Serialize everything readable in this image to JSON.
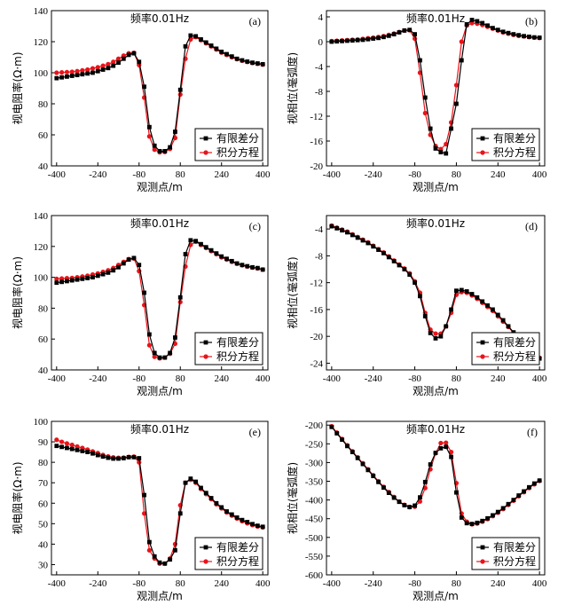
{
  "figure": {
    "legend": {
      "series_fd": "有限差分",
      "series_ie": "积分方程"
    },
    "colors": {
      "series_fd": "#000000",
      "series_ie": "#e8141a"
    }
  },
  "chart_data": [
    {
      "id": "a",
      "type": "line",
      "label": "(a)",
      "title": "频率0.01Hz",
      "xlabel": "观测点/m",
      "ylabel": "视电阻率(Ω·m)",
      "xlim": [
        -420,
        420
      ],
      "ylim": [
        40,
        140
      ],
      "xticks": [
        -400,
        -240,
        -80,
        80,
        240,
        400
      ],
      "xtick_labels": [
        "-400",
        "-240",
        "-80",
        "80",
        "240",
        "400"
      ],
      "yticks": [
        40,
        60,
        80,
        100,
        120,
        140
      ],
      "ytick_labels": [
        "40",
        "60",
        "80",
        "100",
        "120",
        "140"
      ],
      "x": [
        -400,
        -380,
        -360,
        -340,
        -320,
        -300,
        -280,
        -260,
        -240,
        -220,
        -200,
        -180,
        -160,
        -140,
        -120,
        -100,
        -80,
        -60,
        -40,
        -20,
        0,
        20,
        40,
        60,
        80,
        100,
        120,
        140,
        160,
        180,
        200,
        220,
        240,
        260,
        280,
        300,
        320,
        340,
        360,
        380,
        400
      ],
      "series": [
        {
          "name": "有限差分",
          "values": [
            96.5,
            97,
            97.5,
            98,
            98.5,
            99,
            99.5,
            100,
            101,
            102,
            103,
            104.5,
            106.5,
            109,
            111.5,
            112.5,
            107,
            91,
            65,
            53,
            49.5,
            49.5,
            52,
            62,
            89,
            117,
            124,
            123.5,
            121.5,
            119.5,
            117.5,
            115.5,
            113.5,
            112,
            110.5,
            109,
            108,
            107.2,
            106.5,
            106,
            105.5
          ]
        },
        {
          "name": "积分方程",
          "values": [
            100,
            100.2,
            100.4,
            100.6,
            101,
            101.5,
            102,
            102.8,
            103.5,
            104.5,
            105.5,
            107,
            109,
            111,
            112.5,
            112.8,
            105,
            84,
            59,
            50.5,
            48.8,
            49,
            51,
            58,
            86,
            109,
            121.5,
            123,
            121,
            119,
            117,
            115,
            113,
            111.5,
            110,
            108.8,
            107.8,
            107,
            106.3,
            105.8,
            105.3
          ]
        }
      ]
    },
    {
      "id": "b",
      "type": "line",
      "label": "(b)",
      "title": "频率0.01Hz",
      "xlabel": "观测点/m",
      "ylabel": "视相位(毫弧度)",
      "xlim": [
        -420,
        420
      ],
      "ylim": [
        -20,
        5
      ],
      "xticks": [
        -400,
        -240,
        -80,
        80,
        240,
        400
      ],
      "xtick_labels": [
        "-400",
        "-240",
        "-80",
        "80",
        "240",
        "400"
      ],
      "yticks": [
        -20,
        -16,
        -12,
        -8,
        -4,
        0,
        4
      ],
      "ytick_labels": [
        "-20",
        "-16",
        "-12",
        "-8",
        "-4",
        "0",
        "4"
      ],
      "x": [
        -400,
        -380,
        -360,
        -340,
        -320,
        -300,
        -280,
        -260,
        -240,
        -220,
        -200,
        -180,
        -160,
        -140,
        -120,
        -100,
        -80,
        -60,
        -40,
        -20,
        0,
        20,
        40,
        60,
        80,
        100,
        120,
        140,
        160,
        180,
        200,
        220,
        240,
        260,
        280,
        300,
        320,
        340,
        360,
        380,
        400
      ],
      "series": [
        {
          "name": "有限差分",
          "values": [
            0,
            0.05,
            0.1,
            0.15,
            0.2,
            0.25,
            0.3,
            0.4,
            0.5,
            0.6,
            0.75,
            0.95,
            1.2,
            1.5,
            1.8,
            1.9,
            1.2,
            -3,
            -9,
            -14,
            -17.2,
            -17.8,
            -18,
            -14,
            -10,
            -3,
            2.8,
            3.5,
            3.3,
            3,
            2.6,
            2.2,
            1.9,
            1.6,
            1.4,
            1.2,
            1.05,
            0.9,
            0.8,
            0.7,
            0.65
          ]
        },
        {
          "name": "积分方程",
          "values": [
            0.1,
            0.15,
            0.2,
            0.25,
            0.3,
            0.35,
            0.45,
            0.55,
            0.65,
            0.75,
            0.9,
            1.1,
            1.3,
            1.55,
            1.8,
            1.85,
            0.5,
            -5,
            -11.5,
            -15,
            -16.8,
            -17.3,
            -16.5,
            -13,
            -7,
            0,
            2.6,
            3,
            2.9,
            2.7,
            2.4,
            2.1,
            1.8,
            1.5,
            1.3,
            1.1,
            0.95,
            0.85,
            0.75,
            0.65,
            0.6
          ]
        }
      ]
    },
    {
      "id": "c",
      "type": "line",
      "label": "(c)",
      "title": "频率0.01Hz",
      "xlabel": "观测点/m",
      "ylabel": "视电阻率(Ω·m)",
      "xlim": [
        -420,
        420
      ],
      "ylim": [
        40,
        140
      ],
      "xticks": [
        -400,
        -240,
        -80,
        80,
        240,
        400
      ],
      "xtick_labels": [
        "-400",
        "-240",
        "-80",
        "80",
        "240",
        "400"
      ],
      "yticks": [
        40,
        60,
        80,
        100,
        120,
        140
      ],
      "ytick_labels": [
        "40",
        "60",
        "80",
        "100",
        "120",
        "140"
      ],
      "x": [
        -400,
        -380,
        -360,
        -340,
        -320,
        -300,
        -280,
        -260,
        -240,
        -220,
        -200,
        -180,
        -160,
        -140,
        -120,
        -100,
        -80,
        -60,
        -40,
        -20,
        0,
        20,
        40,
        60,
        80,
        100,
        120,
        140,
        160,
        180,
        200,
        220,
        240,
        260,
        280,
        300,
        320,
        340,
        360,
        380,
        400
      ],
      "series": [
        {
          "name": "有限差分",
          "values": [
            96.5,
            97,
            97.5,
            98,
            98.5,
            99,
            99.5,
            100,
            101,
            102,
            103,
            104.5,
            106.5,
            109,
            111.5,
            112.5,
            108,
            90,
            63,
            51,
            48,
            48,
            51,
            61,
            87,
            115,
            124,
            123.5,
            121.5,
            119.5,
            117.5,
            115.5,
            113.5,
            112,
            110.5,
            109,
            108,
            107.2,
            106.5,
            106,
            105
          ]
        },
        {
          "name": "积分方程",
          "values": [
            99,
            99.2,
            99.4,
            99.6,
            100,
            100.5,
            101,
            101.8,
            102.5,
            103.5,
            104.5,
            106,
            108,
            110,
            111.8,
            112.2,
            104,
            82,
            56,
            48.5,
            47.5,
            48,
            50.5,
            57,
            84,
            107,
            121,
            123,
            121,
            119,
            117,
            115,
            113,
            111.5,
            110,
            108.8,
            107.8,
            107,
            106.3,
            105.8,
            105
          ]
        }
      ]
    },
    {
      "id": "d",
      "type": "line",
      "label": "(d)",
      "title": "频率0.01Hz",
      "xlabel": "观测点/m",
      "ylabel": "视相位(毫弧度)",
      "xlim": [
        -420,
        420
      ],
      "ylim": [
        -25,
        -2
      ],
      "xticks": [
        -400,
        -240,
        -80,
        80,
        240,
        400
      ],
      "xtick_labels": [
        "-400",
        "-240",
        "-80",
        "80",
        "240",
        "400"
      ],
      "yticks": [
        -24,
        -20,
        -16,
        -12,
        -8,
        -4
      ],
      "ytick_labels": [
        "-24",
        "-20",
        "-16",
        "-12",
        "-8",
        "-4"
      ],
      "x": [
        -400,
        -380,
        -360,
        -340,
        -320,
        -300,
        -280,
        -260,
        -240,
        -220,
        -200,
        -180,
        -160,
        -140,
        -120,
        -100,
        -80,
        -60,
        -40,
        -20,
        0,
        20,
        40,
        60,
        80,
        100,
        120,
        140,
        160,
        180,
        200,
        220,
        240,
        260,
        280,
        300,
        320,
        340,
        360,
        380,
        400
      ],
      "series": [
        {
          "name": "有限差分",
          "values": [
            -3.6,
            -3.9,
            -4.2,
            -4.5,
            -4.9,
            -5.3,
            -5.7,
            -6.1,
            -6.6,
            -7.1,
            -7.6,
            -8.2,
            -8.8,
            -9.4,
            -10,
            -10.8,
            -12,
            -14,
            -17,
            -19.5,
            -20.3,
            -20,
            -18.5,
            -16,
            -13.2,
            -13.1,
            -13.3,
            -13.7,
            -14.2,
            -14.8,
            -15.4,
            -16,
            -16.8,
            -17.6,
            -18.5,
            -19.4,
            -20.3,
            -21.2,
            -22.1,
            -22.9,
            -23.3
          ]
        },
        {
          "name": "积分方程",
          "values": [
            -3.5,
            -3.8,
            -4.1,
            -4.4,
            -4.8,
            -5.2,
            -5.6,
            -6,
            -6.5,
            -7,
            -7.5,
            -8.1,
            -8.7,
            -9.3,
            -9.9,
            -10.6,
            -11.8,
            -13.5,
            -16.5,
            -19,
            -19.6,
            -19.6,
            -18.5,
            -16.5,
            -13.8,
            -13.4,
            -13.5,
            -13.9,
            -14.4,
            -15,
            -15.6,
            -16.2,
            -17,
            -17.8,
            -18.6,
            -19.5,
            -20.4,
            -21.3,
            -22.1,
            -22.8,
            -23.2
          ]
        }
      ]
    },
    {
      "id": "e",
      "type": "line",
      "label": "(e)",
      "title": "频率0.01Hz",
      "xlabel": "观测点/m",
      "ylabel": "视电阻率(Ω·m)",
      "xlim": [
        -420,
        420
      ],
      "ylim": [
        25,
        100
      ],
      "xticks": [
        -400,
        -240,
        -80,
        80,
        240,
        400
      ],
      "xtick_labels": [
        "-400",
        "-240",
        "-80",
        "80",
        "240",
        "400"
      ],
      "yticks": [
        30,
        40,
        50,
        60,
        70,
        80,
        90,
        100
      ],
      "ytick_labels": [
        "30",
        "40",
        "50",
        "60",
        "70",
        "80",
        "90",
        "100"
      ],
      "x": [
        -400,
        -380,
        -360,
        -340,
        -320,
        -300,
        -280,
        -260,
        -240,
        -220,
        -200,
        -180,
        -160,
        -140,
        -120,
        -100,
        -80,
        -60,
        -40,
        -20,
        0,
        20,
        40,
        60,
        80,
        100,
        120,
        140,
        160,
        180,
        200,
        220,
        240,
        260,
        280,
        300,
        320,
        340,
        360,
        380,
        400
      ],
      "series": [
        {
          "name": "有限差分",
          "values": [
            88,
            87.5,
            87,
            86.5,
            86,
            85.5,
            85,
            84.3,
            83.5,
            82.8,
            82.2,
            81.8,
            81.8,
            82,
            82.5,
            82.5,
            82,
            64,
            41,
            34,
            31,
            30.5,
            32.5,
            37,
            55,
            70,
            72,
            70.5,
            67.5,
            65,
            62.5,
            60,
            58,
            56,
            54.5,
            53,
            51.8,
            50.8,
            49.8,
            49,
            48.5
          ]
        },
        {
          "name": "积分方程",
          "values": [
            91,
            90,
            89.2,
            88.5,
            87.7,
            87,
            86.2,
            85.3,
            84.5,
            83.6,
            82.9,
            82.4,
            82.2,
            82.3,
            82.6,
            82.8,
            80,
            55,
            37,
            33,
            30.5,
            30.5,
            33,
            40,
            59,
            70,
            71.5,
            70,
            67,
            64.5,
            62,
            59.5,
            57.5,
            55.5,
            54,
            52.5,
            51.2,
            50.2,
            49.3,
            48.6,
            48.2
          ]
        }
      ]
    },
    {
      "id": "f",
      "type": "line",
      "label": "(f)",
      "title": "频率0.01Hz",
      "xlabel": "观测点/m",
      "ylabel": "视相位(毫弧度)",
      "xlim": [
        -420,
        420
      ],
      "ylim": [
        -600,
        -190
      ],
      "xticks": [
        -400,
        -240,
        -80,
        80,
        240,
        400
      ],
      "xtick_labels": [
        "-400",
        "-240",
        "-80",
        "80",
        "240",
        "400"
      ],
      "yticks": [
        -600,
        -550,
        -500,
        -450,
        -400,
        -350,
        -300,
        -250,
        -200
      ],
      "ytick_labels": [
        "-600",
        "-550",
        "-500",
        "-450",
        "-400",
        "-350",
        "-300",
        "-250",
        "-200"
      ],
      "x": [
        -400,
        -380,
        -360,
        -340,
        -320,
        -300,
        -280,
        -260,
        -240,
        -220,
        -200,
        -180,
        -160,
        -140,
        -120,
        -100,
        -80,
        -60,
        -40,
        -20,
        0,
        20,
        40,
        60,
        80,
        100,
        120,
        140,
        160,
        180,
        200,
        220,
        240,
        260,
        280,
        300,
        320,
        340,
        360,
        380,
        400
      ],
      "series": [
        {
          "name": "有限差分",
          "values": [
            -205,
            -222,
            -239,
            -256,
            -272,
            -288,
            -304,
            -320,
            -336,
            -352,
            -367,
            -381,
            -394,
            -405,
            -414,
            -419,
            -415,
            -393,
            -352,
            -305,
            -274,
            -262,
            -258,
            -285,
            -380,
            -447,
            -462,
            -464,
            -461,
            -456,
            -449,
            -441,
            -432,
            -422,
            -411,
            -400,
            -388,
            -377,
            -366,
            -356,
            -348
          ]
        },
        {
          "name": "积分方程",
          "values": [
            -203,
            -220,
            -237,
            -254,
            -270,
            -286,
            -302,
            -318,
            -334,
            -350,
            -365,
            -379,
            -392,
            -404,
            -413,
            -419,
            -418,
            -404,
            -368,
            -318,
            -275,
            -248,
            -247,
            -272,
            -355,
            -436,
            -458,
            -465,
            -463,
            -458,
            -451,
            -443,
            -434,
            -424,
            -413,
            -402,
            -390,
            -379,
            -368,
            -358,
            -349
          ]
        }
      ]
    }
  ]
}
